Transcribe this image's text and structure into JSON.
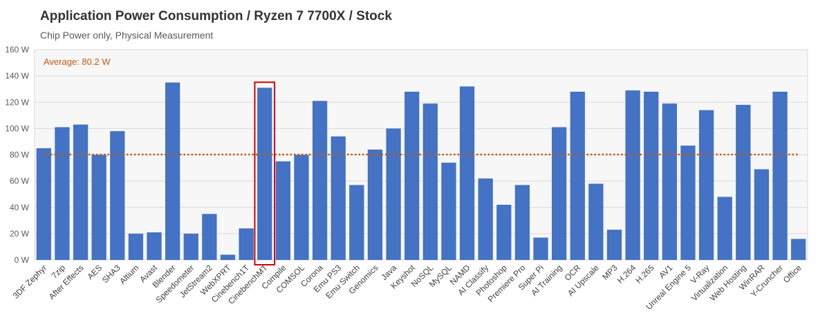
{
  "title": "Application  Power Consumption  / Ryzen 7 7700X / Stock",
  "subtitle": "Chip Power only, Physical Measurement",
  "colors": {
    "bar": "#4472C4",
    "average": "#C55A11",
    "highlight": "#D00000",
    "plot_bg": "#F7F7F7",
    "grid": "#D9D9D9"
  },
  "chart_data": {
    "type": "bar",
    "title": "Application  Power Consumption  / Ryzen 7 7700X / Stock",
    "subtitle": "Chip Power only, Physical Measurement",
    "categories": [
      "3DF Zephyr",
      "7zip",
      "After Effects",
      "AES",
      "SHA3",
      "Altium",
      "Avast",
      "Blender",
      "Speedometer",
      "JetStream2",
      "WebXPRT",
      "Cinebench1T",
      "CinebenchMT",
      "Compile",
      "COMSOL",
      "Corona",
      "Emu PS3",
      "Emu Switch",
      "Genomics",
      "Java",
      "Keyshot",
      "NoSQL",
      "MySQL",
      "NAMD",
      "AI Classify",
      "Photoshop",
      "Premiere Pro",
      "Super Pi",
      "AI Training",
      "OCR",
      "AI Upscale",
      "MP3",
      "H.264",
      "H.265",
      "AV1",
      "Unreal Engine 5",
      "V-Ray",
      "Virtualization",
      "Web Hosting",
      "WinRAR",
      "Y-Cruncher",
      "Office"
    ],
    "values": [
      85,
      101,
      103,
      80,
      98,
      20,
      21,
      135,
      20,
      35,
      4,
      24,
      131,
      75,
      80,
      121,
      94,
      57,
      84,
      100,
      128,
      119,
      74,
      132,
      62,
      42,
      57,
      17,
      101,
      128,
      58,
      23,
      129,
      128,
      119,
      87,
      114,
      48,
      118,
      69,
      128,
      16
    ],
    "y_tick_labels": [
      "0 W",
      "20 W",
      "40 W",
      "60 W",
      "80 W",
      "100 W",
      "120 W",
      "140 W",
      "160 W"
    ],
    "ylim": [
      0,
      160
    ],
    "y_unit": "W",
    "average": 80.2,
    "average_label": "Average: 80.2 W",
    "highlighted_category": "CinebenchMT",
    "grid": true,
    "legend": "none"
  }
}
